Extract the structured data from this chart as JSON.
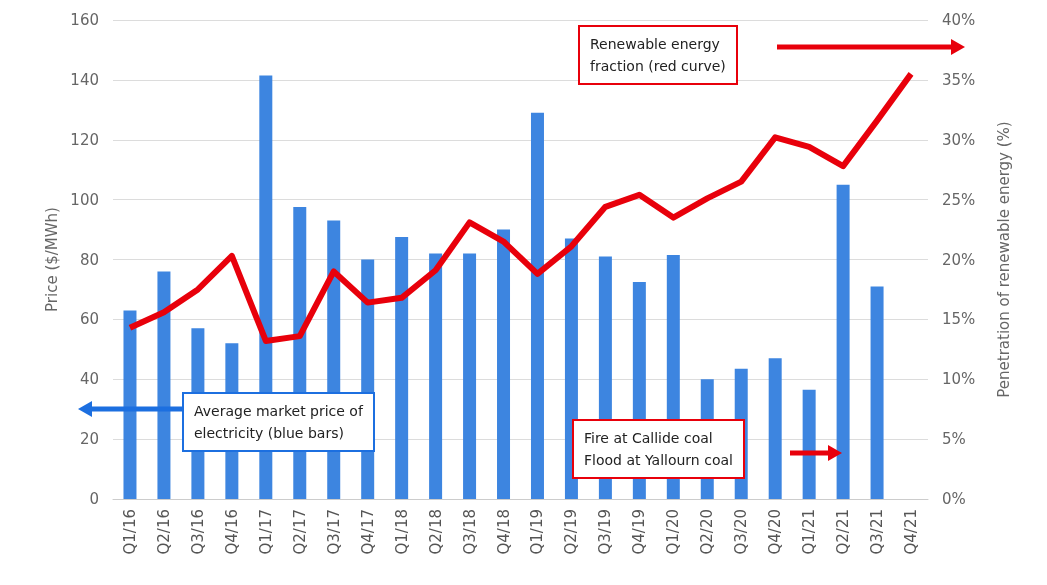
{
  "chart_data": {
    "type": "bar",
    "ylabel": "Price ($/MWh)",
    "y2label": "Penetration of renewable energy (%)",
    "categories": [
      "Q1/16",
      "Q2/16",
      "Q3/16",
      "Q4/16",
      "Q1/17",
      "Q2/17",
      "Q3/17",
      "Q4/17",
      "Q1/18",
      "Q2/18",
      "Q3/18",
      "Q4/18",
      "Q1/19",
      "Q2/19",
      "Q3/19",
      "Q4/19",
      "Q1/20",
      "Q2/20",
      "Q3/20",
      "Q4/20",
      "Q1/21",
      "Q2/21",
      "Q3/21",
      "Q4/21"
    ],
    "series": [
      {
        "color": "#3d85e0",
        "values": [
          63,
          76,
          57,
          52,
          141.5,
          97.5,
          93,
          80,
          87.5,
          82,
          82,
          90,
          129,
          87,
          81,
          72.5,
          81.5,
          40,
          43.5,
          47,
          36.5,
          105,
          71,
          null
        ]
      },
      {
        "type": "line",
        "axis": "y2",
        "color": "#e8000b",
        "values": [
          14.3,
          15.6,
          17.5,
          20.3,
          13.2,
          13.6,
          19.0,
          16.4,
          16.8,
          19.1,
          23.1,
          21.5,
          18.8,
          21.1,
          24.4,
          25.4,
          23.5,
          25.1,
          26.5,
          30.2,
          29.4,
          27.8,
          31.6,
          35.5
        ]
      }
    ],
    "ylim": [
      0,
      160
    ],
    "yticks": [
      0,
      20,
      40,
      60,
      80,
      100,
      120,
      140,
      160
    ],
    "y2lim": [
      0,
      40
    ],
    "y2ticks": [
      {
        "value": 0,
        "label": "0%"
      },
      {
        "value": 5,
        "label": "5%"
      },
      {
        "value": 10,
        "label": "10%"
      },
      {
        "value": 15,
        "label": "15%"
      },
      {
        "value": 20,
        "label": "20%"
      },
      {
        "value": 25,
        "label": "25%"
      },
      {
        "value": 30,
        "label": "30%"
      },
      {
        "value": 35,
        "label": "35%"
      },
      {
        "value": 40,
        "label": "40%"
      }
    ],
    "grid": "y",
    "marker": "none",
    "annotations": [
      "Renewable energy\nfraction (red curve)",
      "Average market price of\nelectricity (blue bars)",
      "Fire at Callide coal\nFlood at Yallourn coal"
    ]
  }
}
